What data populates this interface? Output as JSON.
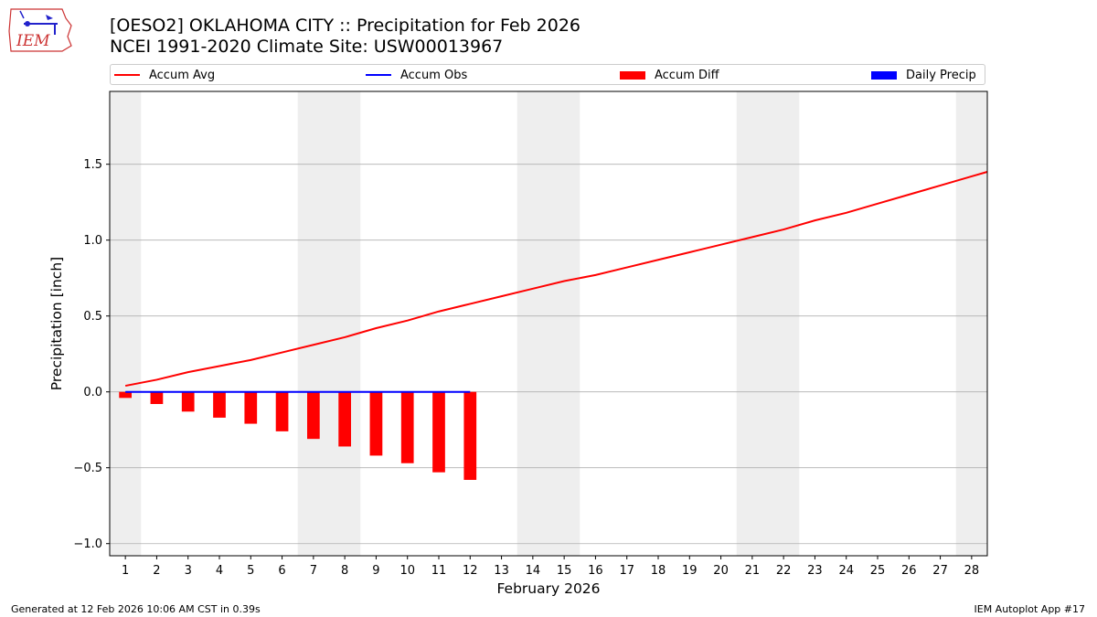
{
  "header": {
    "title_line1": "[OESO2] OKLAHOMA CITY :: Precipitation for Feb 2026",
    "title_line2": "NCEI 1991-2020 Climate Site: USW00013967"
  },
  "logo": {
    "text": "IEM",
    "icon": "iem-iowa-logo-icon"
  },
  "footer": {
    "left": "Generated at 12 Feb 2026 10:06 AM CST in 0.39s",
    "right": "IEM Autoplot App #17"
  },
  "colors": {
    "accum_avg": "#ff0000",
    "accum_obs": "#0000ff",
    "accum_diff": "#ff0000",
    "daily_precip": "#0000ff",
    "weekend_shade": "#eeeeee",
    "grid": "#b0b0b0"
  },
  "chart_data": {
    "type": "bar",
    "xlabel": "February 2026",
    "ylabel": "Precipitation [inch]",
    "xlim": [
      0.5,
      28.5
    ],
    "ylim": [
      -1.08,
      1.98
    ],
    "yticks": [
      -1.0,
      -0.5,
      0.0,
      0.5,
      1.0,
      1.5
    ],
    "ytick_labels": [
      "−1.0",
      "−0.5",
      "0.0",
      "0.5",
      "1.0",
      "1.5"
    ],
    "xticks": [
      1,
      2,
      3,
      4,
      5,
      6,
      7,
      8,
      9,
      10,
      11,
      12,
      13,
      14,
      15,
      16,
      17,
      18,
      19,
      20,
      21,
      22,
      23,
      24,
      25,
      26,
      27,
      28
    ],
    "grid": "horizontal",
    "legend_position": "top",
    "legend": [
      "Accum Avg",
      "Accum Obs",
      "Accum Diff",
      "Daily Precip"
    ],
    "weekend_days": [
      1,
      7,
      8,
      14,
      15,
      21,
      22,
      28
    ],
    "series": [
      {
        "name": "Accum Avg",
        "kind": "line",
        "x": [
          1,
          2,
          3,
          4,
          5,
          6,
          7,
          8,
          9,
          10,
          11,
          12,
          13,
          14,
          15,
          16,
          17,
          18,
          19,
          20,
          21,
          22,
          23,
          24,
          25,
          26,
          27,
          28,
          28.5
        ],
        "values": [
          0.04,
          0.08,
          0.13,
          0.17,
          0.21,
          0.26,
          0.31,
          0.36,
          0.42,
          0.47,
          0.53,
          0.58,
          0.63,
          0.68,
          0.73,
          0.77,
          0.82,
          0.87,
          0.92,
          0.97,
          1.02,
          1.07,
          1.13,
          1.18,
          1.24,
          1.3,
          1.36,
          1.42,
          1.45
        ]
      },
      {
        "name": "Accum Obs",
        "kind": "line",
        "x": [
          1,
          2,
          3,
          4,
          5,
          6,
          7,
          8,
          9,
          10,
          11,
          12
        ],
        "values": [
          0,
          0,
          0,
          0,
          0,
          0,
          0,
          0,
          0,
          0,
          0,
          0
        ]
      },
      {
        "name": "Accum Diff",
        "kind": "bar",
        "x": [
          1,
          2,
          3,
          4,
          5,
          6,
          7,
          8,
          9,
          10,
          11,
          12
        ],
        "values": [
          -0.04,
          -0.08,
          -0.13,
          -0.17,
          -0.21,
          -0.26,
          -0.31,
          -0.36,
          -0.42,
          -0.47,
          -0.53,
          -0.58
        ]
      },
      {
        "name": "Daily Precip",
        "kind": "bar",
        "x": [
          1,
          2,
          3,
          4,
          5,
          6,
          7,
          8,
          9,
          10,
          11,
          12
        ],
        "values": [
          0,
          0,
          0,
          0,
          0,
          0,
          0,
          0,
          0,
          0,
          0,
          0
        ]
      }
    ]
  }
}
